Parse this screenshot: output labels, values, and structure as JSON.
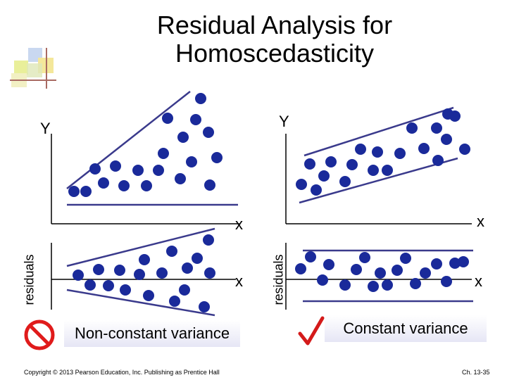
{
  "title_line1": "Residual Analysis for",
  "title_line2": "Homoscedasticity",
  "panels": {
    "left_top_y": "Y",
    "left_top_x": "x",
    "right_top_y": "Y",
    "right_top_x": "x",
    "left_bottom_y": "residuals",
    "left_bottom_x": "x",
    "right_bottom_y": "residuals",
    "right_bottom_x": "x"
  },
  "captions": {
    "left": "Non-constant variance",
    "right": "Constant variance"
  },
  "footer": {
    "copyright": "Copyright © 2013 Pearson Education, Inc. Publishing as Prentice Hall",
    "page": "Ch. 13-35"
  },
  "icons": {
    "left_status": "prohibited-icon",
    "right_status": "checkmark-icon"
  },
  "colors": {
    "point": "#1a2a9a",
    "line": "#3a3a8c",
    "prohibited": "#e01b1b",
    "check": "#d41a1a",
    "caption_bg": "#eeeef8"
  }
}
